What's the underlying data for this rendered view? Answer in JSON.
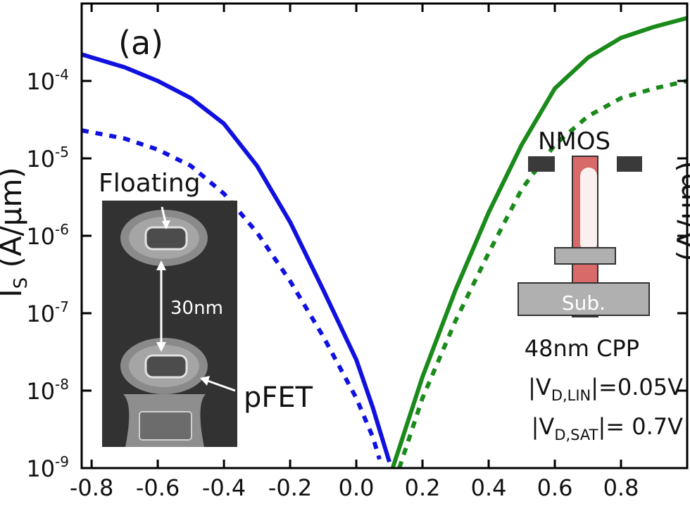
{
  "panel_label": "(a)",
  "y_axis_label_left": "I",
  "y_axis_label_left_sub": "S",
  "y_axis_label_left_unit": "(A/μm)",
  "y_axis_label_right": "(A/μm)",
  "x_ticks": [
    "-0.8",
    "-0.6",
    "-0.4",
    "-0.2",
    "0.0",
    "0.2",
    "0.4",
    "0.6",
    "0.8"
  ],
  "y_ticks": [
    {
      "base": "10",
      "exp": "-4"
    },
    {
      "base": "10",
      "exp": "-5"
    },
    {
      "base": "10",
      "exp": "-6"
    },
    {
      "base": "10",
      "exp": "-7"
    },
    {
      "base": "10",
      "exp": "-8"
    },
    {
      "base": "10",
      "exp": "-9"
    }
  ],
  "inset_tem": {
    "label_top": "Floating",
    "label_spacing": "30nm",
    "label_bottom": "pFET"
  },
  "inset_nmos": {
    "title": "NMOS",
    "substrate_label": "Sub."
  },
  "annotations": {
    "cpp": "48nm CPP",
    "vlin_pre": "|V",
    "vlin_sub": "D,LIN",
    "vlin_post": "|=0.05V",
    "vsat_pre": "|V",
    "vsat_sub": "D,SAT",
    "vsat_post": "|= 0.7V"
  },
  "colors": {
    "pfet": "#1010e0",
    "nfet": "#1a8a1a",
    "axis": "#000000"
  },
  "chart_data": {
    "type": "line",
    "title": "",
    "xlabel": "",
    "ylabel": "IS (A/μm)",
    "xlim": [
      -0.83,
      1.0
    ],
    "ylim": [
      1e-09,
      0.001
    ],
    "yscale": "log",
    "grid": false,
    "series": [
      {
        "x": [
          -0.83,
          -0.7,
          -0.6,
          -0.5,
          -0.4,
          -0.3,
          -0.2,
          -0.1,
          0.0,
          0.05,
          0.1
        ],
        "values": [
          0.00022,
          0.00015,
          0.0001,
          6e-05,
          2.8e-05,
          8e-06,
          1.5e-06,
          2e-07,
          2.5e-08,
          6e-09,
          1.2e-09
        ],
        "color": "#1010e0",
        "style": "solid"
      },
      {
        "x": [
          -0.83,
          -0.7,
          -0.6,
          -0.5,
          -0.4,
          -0.3,
          -0.2,
          -0.1,
          0.0,
          0.05,
          0.07
        ],
        "values": [
          2.3e-05,
          1.8e-05,
          1.3e-05,
          8e-06,
          3.5e-06,
          1.1e-06,
          2.6e-07,
          5e-08,
          8e-09,
          2.5e-09,
          1.3e-09
        ],
        "color": "#1010e0",
        "style": "dotted"
      },
      {
        "x": [
          0.11,
          0.2,
          0.3,
          0.4,
          0.5,
          0.6,
          0.7,
          0.8,
          0.9,
          1.0
        ],
        "values": [
          1e-09,
          1.5e-08,
          2e-07,
          2e-06,
          1.5e-05,
          8e-05,
          0.0002,
          0.00036,
          0.0005,
          0.00065
        ],
        "color": "#1a8a1a",
        "style": "solid"
      },
      {
        "x": [
          0.13,
          0.2,
          0.3,
          0.4,
          0.5,
          0.6,
          0.7,
          0.8,
          0.9,
          1.0
        ],
        "values": [
          1e-09,
          8e-09,
          8e-08,
          6e-07,
          4e-06,
          1.5e-05,
          3.5e-05,
          6e-05,
          8e-05,
          0.0001
        ],
        "color": "#1a8a1a",
        "style": "dotted"
      }
    ]
  }
}
